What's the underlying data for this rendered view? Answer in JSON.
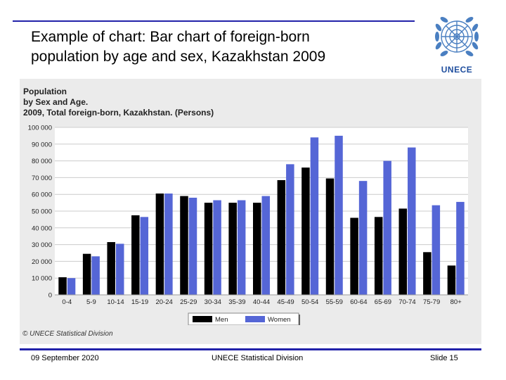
{
  "slide": {
    "title_line1": "Example of chart: Bar chart of foreign-born",
    "title_line2": "population by age and sex, Kazakhstan 2009",
    "logo_text": "UNECE",
    "footer_date": "09 September 2020",
    "footer_org": "UNECE Statistical Division",
    "footer_slide": "Slide 15",
    "credit": "© UNECE Statistical Division"
  },
  "chart_data": {
    "type": "bar",
    "title_lines": [
      "Population",
      "by Sex and Age.",
      "2009, Total foreign-born, Kazakhstan. (Persons)"
    ],
    "xlabel": "",
    "ylabel": "",
    "ylim": [
      0,
      100000
    ],
    "yticks": [
      0,
      10000,
      20000,
      30000,
      40000,
      50000,
      60000,
      70000,
      80000,
      90000,
      100000
    ],
    "ytick_labels": [
      "0",
      "10 000",
      "20 000",
      "30 000",
      "40 000",
      "50 000",
      "60 000",
      "70 000",
      "80 000",
      "90 000",
      "100 000"
    ],
    "grid": true,
    "legend_position": "bottom-center",
    "categories": [
      "0-4",
      "5-9",
      "10-14",
      "15-19",
      "20-24",
      "25-29",
      "30-34",
      "35-39",
      "40-44",
      "45-49",
      "50-54",
      "55-59",
      "60-64",
      "65-69",
      "70-74",
      "75-79",
      "80+"
    ],
    "series": [
      {
        "name": "Men",
        "color": "#000000",
        "values": [
          10500,
          24500,
          31500,
          47500,
          60500,
          59000,
          55000,
          55000,
          55000,
          68500,
          76000,
          69500,
          46000,
          46500,
          51500,
          25500,
          17500
        ]
      },
      {
        "name": "Women",
        "color": "#5566d6",
        "values": [
          10000,
          23000,
          30500,
          46500,
          60500,
          58000,
          56500,
          56500,
          59000,
          78000,
          94000,
          95000,
          68000,
          80000,
          88000,
          53500,
          55500
        ]
      }
    ]
  }
}
